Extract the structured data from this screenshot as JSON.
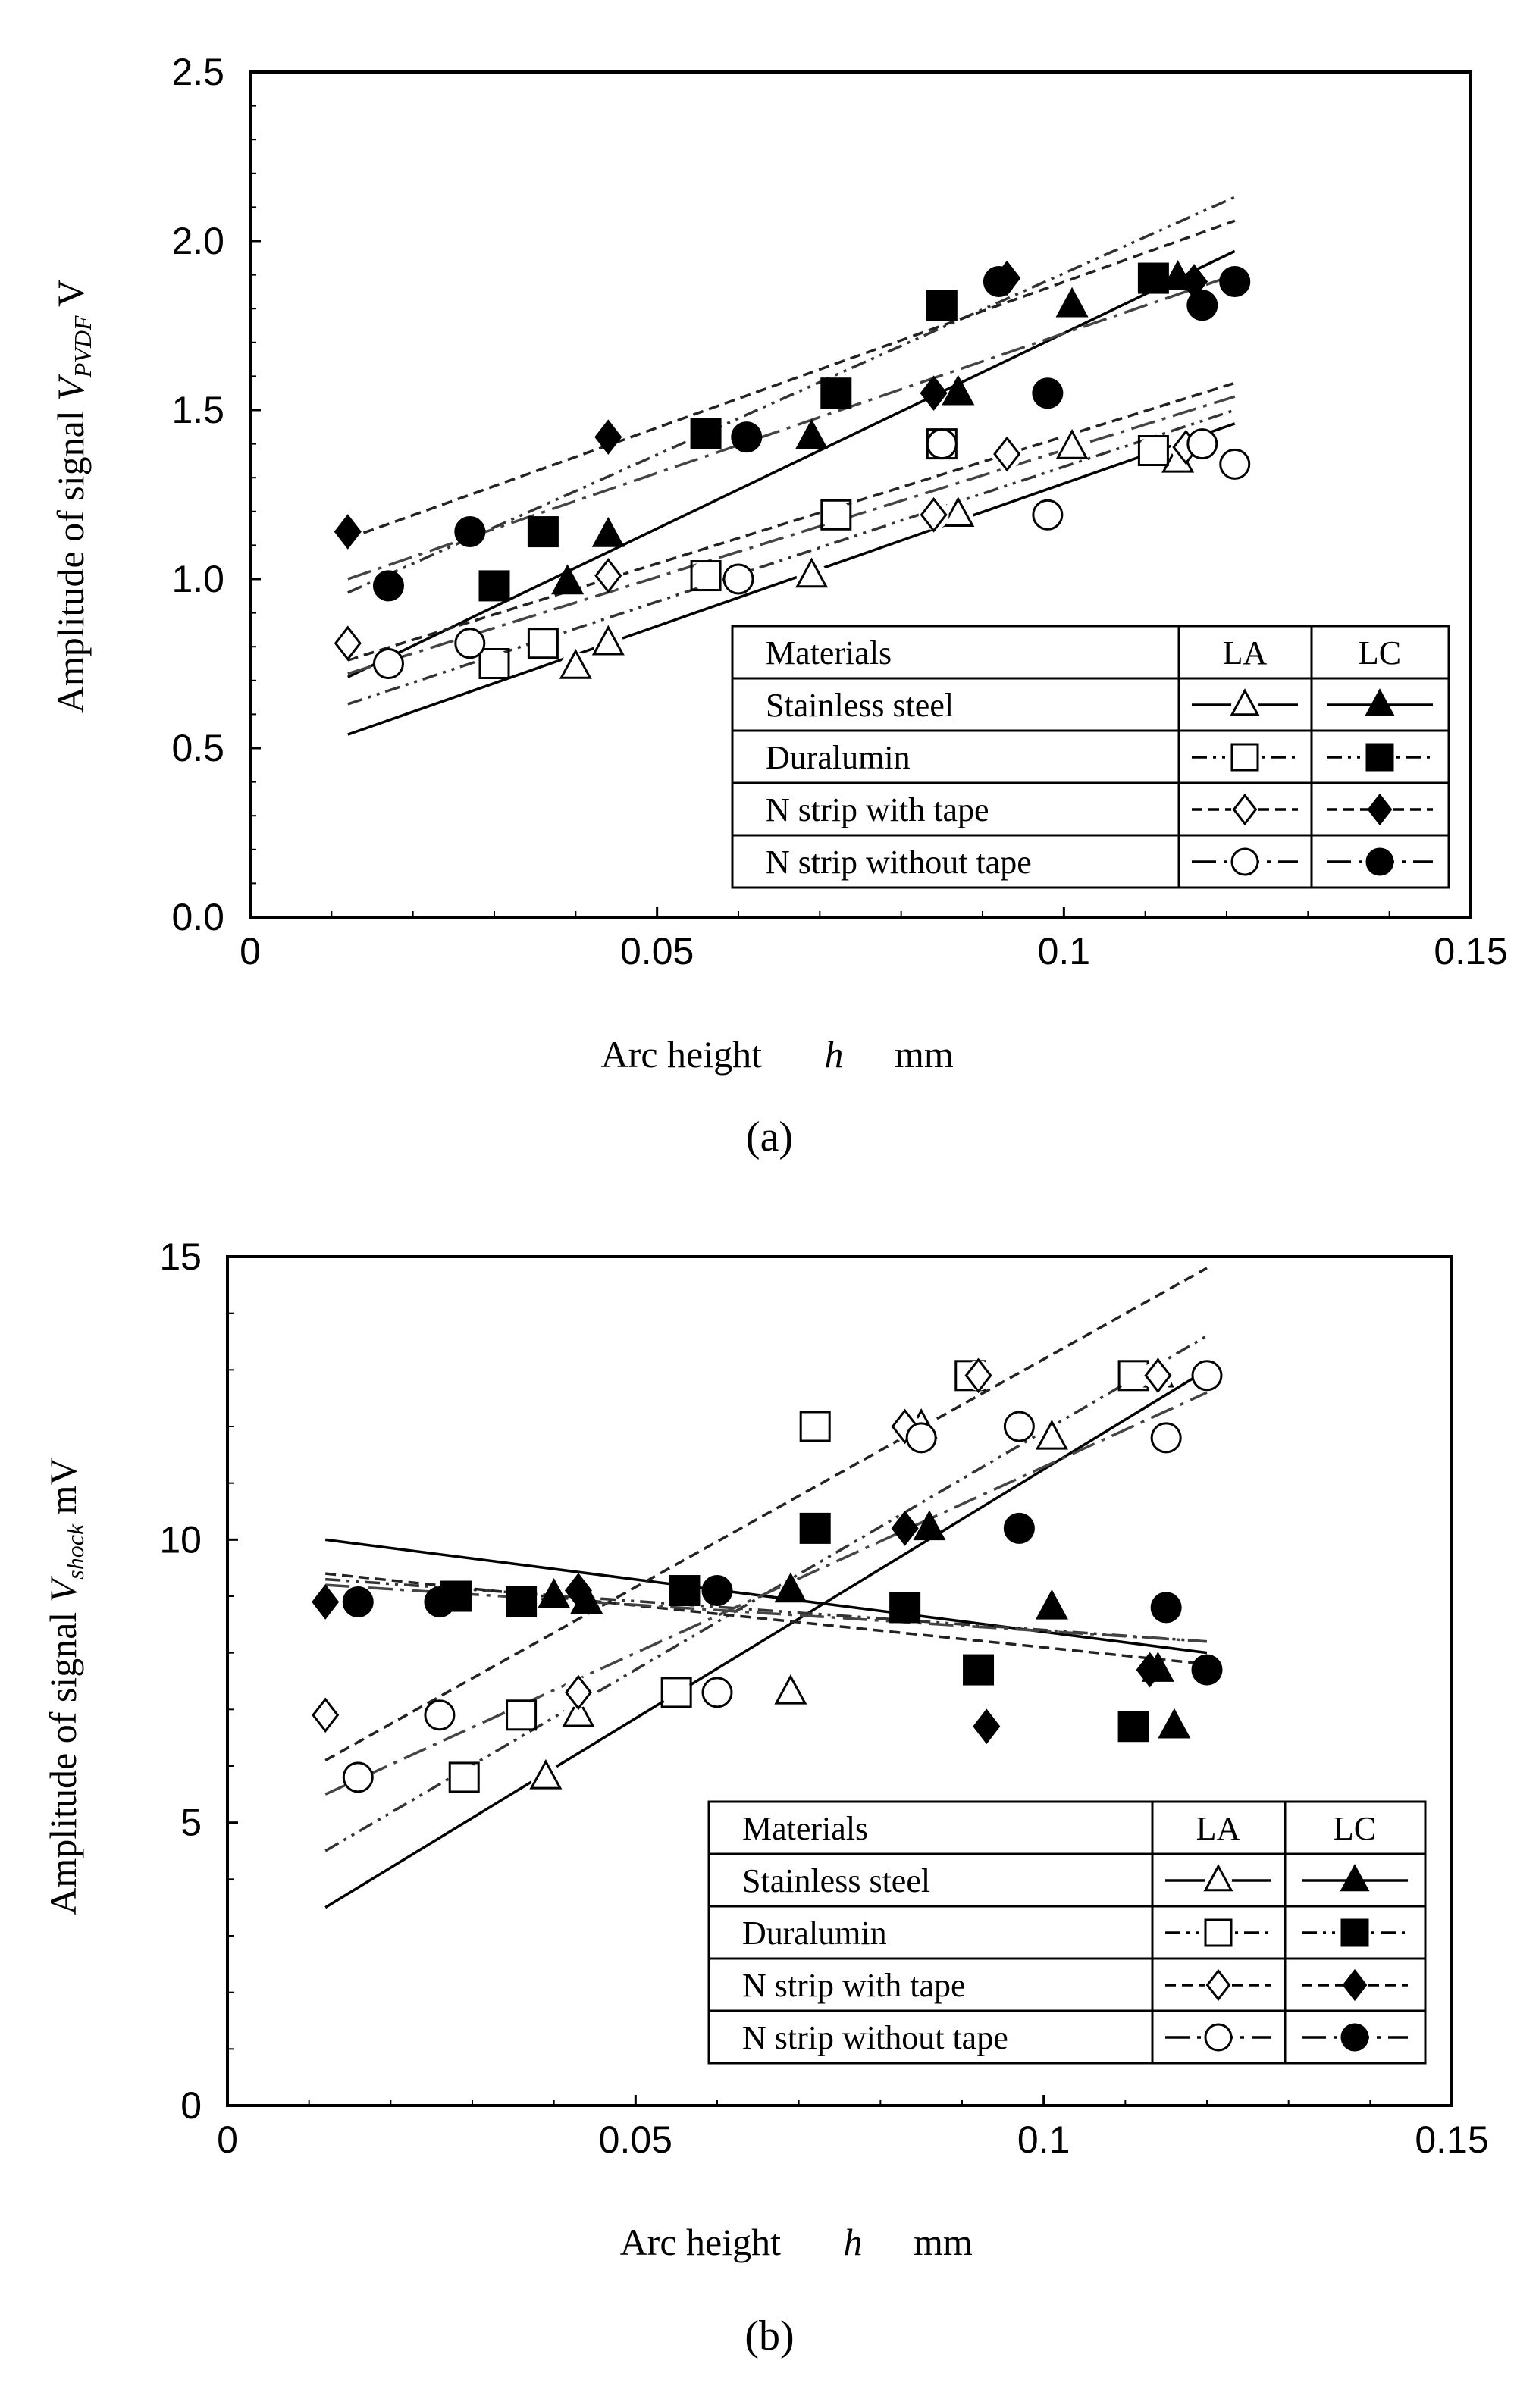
{
  "chart_data": [
    {
      "panel": "(a)",
      "type": "scatter",
      "title": "",
      "xlabel": "Arc height",
      "xlabel_symbol": "h",
      "xlabel_unit": "mm",
      "ylabel": "Amplitude of signal ",
      "ylabel_symbol": "V",
      "ylabel_sub": "PVDF",
      "ylabel_unit": " V",
      "xlim": [
        0,
        0.15
      ],
      "ylim": [
        0,
        2.5
      ],
      "xticks": [
        0,
        0.05,
        0.1,
        0.15
      ],
      "xtick_labels": [
        "0",
        "0.05",
        "0.1",
        "0.15"
      ],
      "yticks": [
        0,
        0.5,
        1,
        1.5,
        2,
        2.5
      ],
      "ytick_labels": [
        "0.0",
        "0.5",
        "1.0",
        "1.5",
        "2.0",
        "2.5"
      ],
      "legend": {
        "header": [
          "Materials",
          "LA",
          "LC"
        ],
        "rows": [
          "Stainless steel",
          "Duralumin",
          "N strip with tape",
          "N strip without tape"
        ],
        "placement": "bottom-right"
      },
      "series": [
        {
          "name": "Stainless steel LA",
          "material": "Stainless steel",
          "mode": "LA",
          "marker": "triangle",
          "filled": false,
          "dash": "solid",
          "x": [
            0.04,
            0.044,
            0.069,
            0.087,
            0.101,
            0.114
          ],
          "y": [
            0.74,
            0.81,
            1.01,
            1.19,
            1.39,
            1.35
          ],
          "fit": [
            [
              0.012,
              0.54
            ],
            [
              0.121,
              1.46
            ]
          ]
        },
        {
          "name": "Stainless steel LC",
          "material": "Stainless steel",
          "mode": "LC",
          "marker": "triangle",
          "filled": true,
          "dash": "solid",
          "x": [
            0.039,
            0.044,
            0.069,
            0.087,
            0.101,
            0.114
          ],
          "y": [
            0.99,
            1.13,
            1.42,
            1.55,
            1.81,
            1.89
          ],
          "fit": [
            [
              0.012,
              0.71
            ],
            [
              0.121,
              1.97
            ]
          ]
        },
        {
          "name": "Duralumin LA",
          "material": "Duralumin",
          "mode": "LA",
          "marker": "square",
          "filled": false,
          "dash": "dashdotdot",
          "x": [
            0.03,
            0.036,
            0.056,
            0.072,
            0.085,
            0.111
          ],
          "y": [
            0.75,
            0.81,
            1.01,
            1.19,
            1.4,
            1.38
          ],
          "fit": [
            [
              0.012,
              0.63
            ],
            [
              0.121,
              1.5
            ]
          ]
        },
        {
          "name": "Duralumin LC",
          "material": "Duralumin",
          "mode": "LC",
          "marker": "square",
          "filled": true,
          "dash": "dashdotdot",
          "x": [
            0.03,
            0.036,
            0.056,
            0.072,
            0.085,
            0.111
          ],
          "y": [
            0.98,
            1.14,
            1.43,
            1.55,
            1.81,
            1.89
          ],
          "fit": [
            [
              0.012,
              0.96
            ],
            [
              0.121,
              2.13
            ]
          ]
        },
        {
          "name": "N strip with tape LA",
          "material": "N strip with tape",
          "mode": "LA",
          "marker": "diamond",
          "filled": false,
          "dash": "dashed",
          "x": [
            0.012,
            0.044,
            0.084,
            0.093,
            0.115
          ],
          "y": [
            0.81,
            1.01,
            1.19,
            1.37,
            1.39
          ],
          "fit": [
            [
              0.012,
              0.76
            ],
            [
              0.121,
              1.58
            ]
          ]
        },
        {
          "name": "N strip with tape LC",
          "material": "N strip with tape",
          "mode": "LC",
          "marker": "diamond",
          "filled": true,
          "dash": "dashed",
          "x": [
            0.012,
            0.044,
            0.084,
            0.093,
            0.116
          ],
          "y": [
            1.14,
            1.42,
            1.55,
            1.89,
            1.88
          ],
          "fit": [
            [
              0.012,
              1.12
            ],
            [
              0.121,
              2.06
            ]
          ]
        },
        {
          "name": "N strip without tape LA",
          "material": "N strip without tape",
          "mode": "LA",
          "marker": "circle",
          "filled": false,
          "dash": "longdashdot",
          "x": [
            0.017,
            0.027,
            0.06,
            0.085,
            0.098,
            0.117,
            0.121
          ],
          "y": [
            0.75,
            0.81,
            1.0,
            1.4,
            1.19,
            1.4,
            1.34
          ],
          "fit": [
            [
              0.012,
              0.72
            ],
            [
              0.121,
              1.54
            ]
          ]
        },
        {
          "name": "N strip without tape LC",
          "material": "N strip without tape",
          "mode": "LC",
          "marker": "circle",
          "filled": true,
          "dash": "longdashdot",
          "x": [
            0.017,
            0.027,
            0.061,
            0.092,
            0.098,
            0.117,
            0.121
          ],
          "y": [
            0.98,
            1.14,
            1.42,
            1.88,
            1.55,
            1.81,
            1.88
          ],
          "fit": [
            [
              0.012,
              1.0
            ],
            [
              0.121,
              1.9
            ]
          ]
        }
      ]
    },
    {
      "panel": "(b)",
      "type": "scatter",
      "title": "",
      "xlabel": "Arc height",
      "xlabel_symbol": "h",
      "xlabel_unit": "mm",
      "ylabel": "Amplitude of signal ",
      "ylabel_symbol": "V",
      "ylabel_sub": "shock",
      "ylabel_unit": " mV",
      "xlim": [
        0,
        0.15
      ],
      "ylim": [
        0,
        15
      ],
      "xticks": [
        0,
        0.05,
        0.1,
        0.15
      ],
      "xtick_labels": [
        "0",
        "0.05",
        "0.1",
        "0.15"
      ],
      "yticks": [
        0,
        5,
        10,
        15
      ],
      "ytick_labels": [
        "0",
        "5",
        "10",
        "15"
      ],
      "legend": {
        "header": [
          "Materials",
          "LA",
          "LC"
        ],
        "rows": [
          "Stainless steel",
          "Duralumin",
          "N strip with tape",
          "N strip without tape"
        ],
        "placement": "bottom-right"
      },
      "series": [
        {
          "name": "Stainless steel LA",
          "material": "Stainless steel",
          "mode": "LA",
          "marker": "triangle",
          "filled": false,
          "dash": "solid",
          "x": [
            0.039,
            0.043,
            0.069,
            0.085,
            0.101,
            0.114
          ],
          "y": [
            5.8,
            6.9,
            7.3,
            12.0,
            11.8,
            12.9
          ],
          "fit": [
            [
              0.012,
              3.5
            ],
            [
              0.12,
              13.0
            ]
          ]
        },
        {
          "name": "Stainless steel LC",
          "material": "Stainless steel",
          "mode": "LC",
          "marker": "triangle",
          "filled": true,
          "dash": "solid",
          "x": [
            0.04,
            0.044,
            0.069,
            0.086,
            0.101,
            0.114,
            0.116
          ],
          "y": [
            9.0,
            8.9,
            9.1,
            10.2,
            8.8,
            7.7,
            6.7
          ],
          "fit": [
            [
              0.012,
              10.0
            ],
            [
              0.12,
              8.0
            ]
          ]
        },
        {
          "name": "Duralumin LA",
          "material": "Duralumin",
          "mode": "LA",
          "marker": "square",
          "filled": false,
          "dash": "dashdotdot",
          "x": [
            0.029,
            0.036,
            0.055,
            0.072,
            0.091,
            0.111
          ],
          "y": [
            5.8,
            6.9,
            7.3,
            12.0,
            12.9,
            12.9
          ],
          "fit": [
            [
              0.012,
              4.5
            ],
            [
              0.12,
              13.6
            ]
          ]
        },
        {
          "name": "Duralumin LC",
          "material": "Duralumin",
          "mode": "LC",
          "marker": "square",
          "filled": true,
          "dash": "dashdotdot",
          "x": [
            0.028,
            0.036,
            0.056,
            0.072,
            0.083,
            0.092,
            0.111
          ],
          "y": [
            9.0,
            8.9,
            9.1,
            10.2,
            8.8,
            7.7,
            6.7
          ],
          "fit": [
            [
              0.012,
              9.3
            ],
            [
              0.12,
              8.2
            ]
          ]
        },
        {
          "name": "N strip with tape LA",
          "material": "N strip with tape",
          "mode": "LA",
          "marker": "diamond",
          "filled": false,
          "dash": "dashed",
          "x": [
            0.012,
            0.043,
            0.083,
            0.092,
            0.114
          ],
          "y": [
            6.9,
            7.3,
            12.0,
            12.9,
            12.9
          ],
          "fit": [
            [
              0.012,
              6.1
            ],
            [
              0.12,
              14.8
            ]
          ]
        },
        {
          "name": "N strip with tape LC",
          "material": "N strip with tape",
          "mode": "LC",
          "marker": "diamond",
          "filled": true,
          "dash": "dashed",
          "x": [
            0.012,
            0.043,
            0.083,
            0.093,
            0.113
          ],
          "y": [
            8.9,
            9.1,
            10.2,
            6.7,
            7.7
          ],
          "fit": [
            [
              0.012,
              9.4
            ],
            [
              0.12,
              7.8
            ]
          ]
        },
        {
          "name": "N strip without tape LA",
          "material": "N strip without tape",
          "mode": "LA",
          "marker": "circle",
          "filled": false,
          "dash": "longdashdot",
          "x": [
            0.016,
            0.026,
            0.06,
            0.085,
            0.097,
            0.115,
            0.12
          ],
          "y": [
            5.8,
            6.9,
            7.3,
            11.8,
            12.0,
            11.8,
            12.9
          ],
          "fit": [
            [
              0.012,
              5.5
            ],
            [
              0.12,
              12.6
            ]
          ]
        },
        {
          "name": "N strip without tape LC",
          "material": "N strip without tape",
          "mode": "LC",
          "marker": "circle",
          "filled": true,
          "dash": "longdashdot",
          "x": [
            0.016,
            0.026,
            0.06,
            0.097,
            0.115,
            0.12
          ],
          "y": [
            8.9,
            8.9,
            9.1,
            10.2,
            8.8,
            7.7
          ],
          "fit": [
            [
              0.012,
              9.2
            ],
            [
              0.12,
              8.2
            ]
          ]
        }
      ]
    }
  ]
}
